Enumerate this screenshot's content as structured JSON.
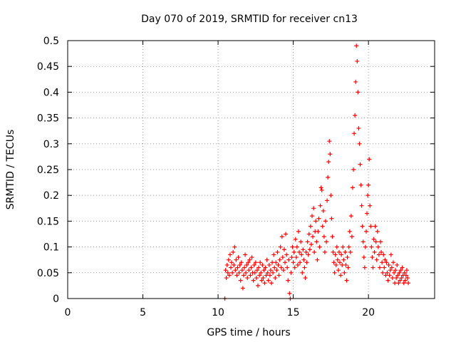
{
  "chart_data": {
    "type": "scatter",
    "title": "Day 070 of 2019, SRMTID for receiver cn13",
    "xlabel": "GPS time / hours",
    "ylabel": "SRMTID / TECUs",
    "xlim": [
      0,
      24.4
    ],
    "ylim": [
      0,
      0.5
    ],
    "x_ticks": [
      0,
      5,
      10,
      15,
      20
    ],
    "x_tick_labels": [
      "0",
      "5",
      "10",
      "15",
      "20"
    ],
    "y_ticks": [
      0,
      0.05,
      0.1,
      0.15,
      0.2,
      0.25,
      0.3,
      0.35,
      0.4,
      0.45,
      0.5
    ],
    "y_tick_labels": [
      "0",
      "0.05",
      "0.1",
      "0.15",
      "0.2",
      "0.25",
      "0.3",
      "0.35",
      "0.4",
      "0.45",
      "0.5"
    ],
    "grid": true,
    "marker": "plus",
    "marker_color": "#ff0000",
    "series": [
      {
        "name": "SRMTID",
        "points": [
          [
            10.45,
            0.0
          ],
          [
            10.5,
            0.055
          ],
          [
            10.55,
            0.04
          ],
          [
            10.6,
            0.065
          ],
          [
            10.65,
            0.05
          ],
          [
            10.7,
            0.075
          ],
          [
            10.75,
            0.045
          ],
          [
            10.8,
            0.085
          ],
          [
            10.85,
            0.06
          ],
          [
            10.9,
            0.07
          ],
          [
            10.95,
            0.05
          ],
          [
            11.0,
            0.09
          ],
          [
            11.05,
            0.065
          ],
          [
            11.1,
            0.1
          ],
          [
            11.15,
            0.055
          ],
          [
            11.2,
            0.075
          ],
          [
            11.25,
            0.045
          ],
          [
            11.3,
            0.06
          ],
          [
            11.35,
            0.08
          ],
          [
            11.4,
            0.05
          ],
          [
            11.45,
            0.065
          ],
          [
            11.5,
            0.035
          ],
          [
            11.55,
            0.07
          ],
          [
            11.6,
            0.055
          ],
          [
            11.65,
            0.02
          ],
          [
            11.7,
            0.045
          ],
          [
            11.75,
            0.06
          ],
          [
            11.8,
            0.085
          ],
          [
            11.85,
            0.05
          ],
          [
            11.9,
            0.065
          ],
          [
            11.95,
            0.04
          ],
          [
            12.0,
            0.07
          ],
          [
            12.05,
            0.055
          ],
          [
            12.1,
            0.075
          ],
          [
            12.15,
            0.045
          ],
          [
            12.2,
            0.06
          ],
          [
            12.25,
            0.08
          ],
          [
            12.3,
            0.05
          ],
          [
            12.35,
            0.035
          ],
          [
            12.4,
            0.065
          ],
          [
            12.45,
            0.05
          ],
          [
            12.5,
            0.07
          ],
          [
            12.55,
            0.04
          ],
          [
            12.6,
            0.055
          ],
          [
            12.65,
            0.025
          ],
          [
            12.7,
            0.06
          ],
          [
            12.75,
            0.045
          ],
          [
            12.8,
            0.07
          ],
          [
            12.85,
            0.05
          ],
          [
            12.9,
            0.035
          ],
          [
            12.95,
            0.065
          ],
          [
            13.0,
            0.04
          ],
          [
            13.05,
            0.055
          ],
          [
            13.1,
            0.03
          ],
          [
            13.15,
            0.06
          ],
          [
            13.2,
            0.045
          ],
          [
            13.25,
            0.075
          ],
          [
            13.3,
            0.05
          ],
          [
            13.35,
            0.035
          ],
          [
            13.4,
            0.065
          ],
          [
            13.45,
            0.045
          ],
          [
            13.5,
            0.055
          ],
          [
            13.55,
            0.03
          ],
          [
            13.6,
            0.07
          ],
          [
            13.65,
            0.05
          ],
          [
            13.7,
            0.085
          ],
          [
            13.75,
            0.06
          ],
          [
            13.8,
            0.04
          ],
          [
            13.85,
            0.07
          ],
          [
            13.9,
            0.055
          ],
          [
            13.95,
            0.09
          ],
          [
            14.0,
            0.065
          ],
          [
            14.05,
            0.045
          ],
          [
            14.1,
            0.075
          ],
          [
            14.15,
            0.1
          ],
          [
            14.2,
            0.06
          ],
          [
            14.25,
            0.12
          ],
          [
            14.3,
            0.08
          ],
          [
            14.35,
            0.055
          ],
          [
            14.4,
            0.095
          ],
          [
            14.45,
            0.07
          ],
          [
            14.5,
            0.125
          ],
          [
            14.55,
            0.085
          ],
          [
            14.6,
            0.06
          ],
          [
            14.65,
            0.035
          ],
          [
            14.7,
            0.075
          ],
          [
            14.75,
            0.01
          ],
          [
            14.8,
            0.0
          ],
          [
            14.85,
            0.05
          ],
          [
            14.9,
            0.08
          ],
          [
            14.95,
            0.1
          ],
          [
            15.0,
            0.07
          ],
          [
            15.05,
            0.09
          ],
          [
            15.1,
            0.06
          ],
          [
            15.15,
            0.115
          ],
          [
            15.2,
            0.08
          ],
          [
            15.25,
            0.1
          ],
          [
            15.3,
            0.065
          ],
          [
            15.35,
            0.13
          ],
          [
            15.4,
            0.09
          ],
          [
            15.45,
            0.07
          ],
          [
            15.5,
            0.11
          ],
          [
            15.55,
            0.085
          ],
          [
            15.6,
            0.05
          ],
          [
            15.65,
            0.095
          ],
          [
            15.7,
            0.075
          ],
          [
            15.75,
            0.06
          ],
          [
            15.8,
            0.04
          ],
          [
            15.85,
            0.09
          ],
          [
            15.9,
            0.07
          ],
          [
            15.95,
            0.11
          ],
          [
            16.0,
            0.085
          ],
          [
            16.05,
            0.125
          ],
          [
            16.1,
            0.095
          ],
          [
            16.15,
            0.14
          ],
          [
            16.2,
            0.105
          ],
          [
            16.25,
            0.16
          ],
          [
            16.3,
            0.12
          ],
          [
            16.35,
            0.175
          ],
          [
            16.4,
            0.09
          ],
          [
            16.45,
            0.13
          ],
          [
            16.5,
            0.15
          ],
          [
            16.55,
            0.11
          ],
          [
            16.6,
            0.075
          ],
          [
            16.65,
            0.13
          ],
          [
            16.7,
            0.155
          ],
          [
            16.75,
            0.1
          ],
          [
            16.8,
            0.18
          ],
          [
            16.85,
            0.215
          ],
          [
            16.9,
            0.21
          ],
          [
            16.95,
            0.14
          ],
          [
            17.0,
            0.17
          ],
          [
            17.05,
            0.12
          ],
          [
            17.1,
            0.09
          ],
          [
            17.15,
            0.15
          ],
          [
            17.2,
            0.11
          ],
          [
            17.25,
            0.19
          ],
          [
            17.3,
            0.235
          ],
          [
            17.35,
            0.265
          ],
          [
            17.4,
            0.305
          ],
          [
            17.45,
            0.28
          ],
          [
            17.5,
            0.2
          ],
          [
            17.55,
            0.155
          ],
          [
            17.6,
            0.12
          ],
          [
            17.65,
            0.09
          ],
          [
            17.7,
            0.07
          ],
          [
            17.75,
            0.05
          ],
          [
            17.8,
            0.085
          ],
          [
            17.85,
            0.065
          ],
          [
            17.9,
            0.1
          ],
          [
            17.95,
            0.075
          ],
          [
            18.0,
            0.055
          ],
          [
            18.05,
            0.09
          ],
          [
            18.1,
            0.07
          ],
          [
            18.15,
            0.045
          ],
          [
            18.2,
            0.085
          ],
          [
            18.25,
            0.065
          ],
          [
            18.3,
            0.1
          ],
          [
            18.35,
            0.075
          ],
          [
            18.4,
            0.05
          ],
          [
            18.45,
            0.09
          ],
          [
            18.5,
            0.065
          ],
          [
            18.55,
            0.035
          ],
          [
            18.6,
            0.08
          ],
          [
            18.65,
            0.06
          ],
          [
            18.7,
            0.1
          ],
          [
            18.75,
            0.13
          ],
          [
            18.8,
            0.09
          ],
          [
            18.85,
            0.16
          ],
          [
            18.9,
            0.12
          ],
          [
            18.95,
            0.215
          ],
          [
            19.0,
            0.25
          ],
          [
            19.05,
            0.32
          ],
          [
            19.1,
            0.355
          ],
          [
            19.15,
            0.42
          ],
          [
            19.2,
            0.49
          ],
          [
            19.25,
            0.46
          ],
          [
            19.3,
            0.4
          ],
          [
            19.35,
            0.33
          ],
          [
            19.4,
            0.3
          ],
          [
            19.45,
            0.26
          ],
          [
            19.5,
            0.22
          ],
          [
            19.55,
            0.18
          ],
          [
            19.6,
            0.14
          ],
          [
            19.65,
            0.11
          ],
          [
            19.7,
            0.08
          ],
          [
            19.75,
            0.06
          ],
          [
            19.8,
            0.1
          ],
          [
            19.85,
            0.13
          ],
          [
            19.9,
            0.165
          ],
          [
            19.95,
            0.2
          ],
          [
            20.0,
            0.22
          ],
          [
            20.05,
            0.27
          ],
          [
            20.1,
            0.18
          ],
          [
            20.15,
            0.14
          ],
          [
            20.2,
            0.1
          ],
          [
            20.25,
            0.08
          ],
          [
            20.3,
            0.06
          ],
          [
            20.35,
            0.115
          ],
          [
            20.4,
            0.09
          ],
          [
            20.45,
            0.14
          ],
          [
            20.5,
            0.11
          ],
          [
            20.55,
            0.075
          ],
          [
            20.6,
            0.13
          ],
          [
            20.65,
            0.1
          ],
          [
            20.7,
            0.085
          ],
          [
            20.75,
            0.06
          ],
          [
            20.8,
            0.11
          ],
          [
            20.85,
            0.09
          ],
          [
            20.9,
            0.07
          ],
          [
            20.95,
            0.05
          ],
          [
            21.0,
            0.085
          ],
          [
            21.05,
            0.06
          ],
          [
            21.1,
            0.075
          ],
          [
            21.15,
            0.045
          ],
          [
            21.2,
            0.07
          ],
          [
            21.25,
            0.05
          ],
          [
            21.3,
            0.035
          ],
          [
            21.35,
            0.065
          ],
          [
            21.4,
            0.045
          ],
          [
            21.45,
            0.055
          ],
          [
            21.5,
            0.085
          ],
          [
            21.55,
            0.06
          ],
          [
            21.6,
            0.04
          ],
          [
            21.65,
            0.07
          ],
          [
            21.7,
            0.05
          ],
          [
            21.75,
            0.03
          ],
          [
            21.8,
            0.055
          ],
          [
            21.85,
            0.04
          ],
          [
            21.9,
            0.065
          ],
          [
            21.95,
            0.045
          ],
          [
            22.0,
            0.03
          ],
          [
            22.05,
            0.05
          ],
          [
            22.1,
            0.035
          ],
          [
            22.15,
            0.055
          ],
          [
            22.2,
            0.04
          ],
          [
            22.25,
            0.06
          ],
          [
            22.3,
            0.045
          ],
          [
            22.35,
            0.03
          ],
          [
            22.4,
            0.05
          ],
          [
            22.45,
            0.035
          ],
          [
            22.5,
            0.045
          ],
          [
            22.55,
            0.055
          ],
          [
            22.6,
            0.04
          ],
          [
            22.65,
            0.03
          ]
        ]
      }
    ]
  }
}
